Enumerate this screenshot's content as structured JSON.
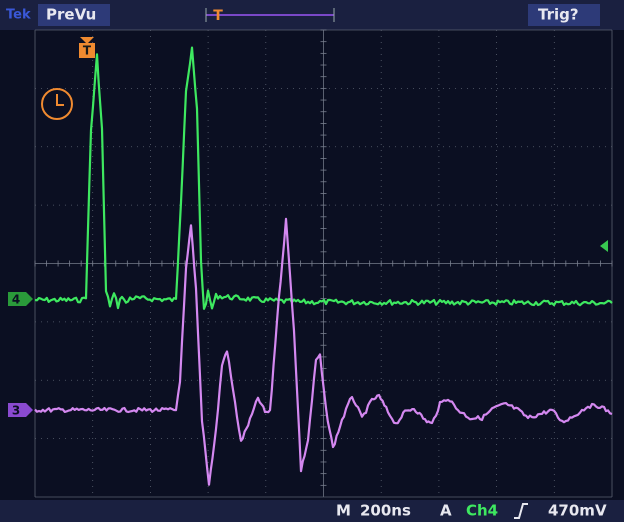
{
  "header": {
    "brand": "Tek",
    "mode": "PreVu",
    "trigger_status": "Trig?"
  },
  "markers": {
    "trigger": "T",
    "ch4": "4",
    "ch3": "3"
  },
  "status_bar": {
    "timebase_prefix": "M",
    "timebase": "200ns",
    "trigger_prefix": "A",
    "trigger_source": "Ch4",
    "trigger_level": "470mV"
  }
}
